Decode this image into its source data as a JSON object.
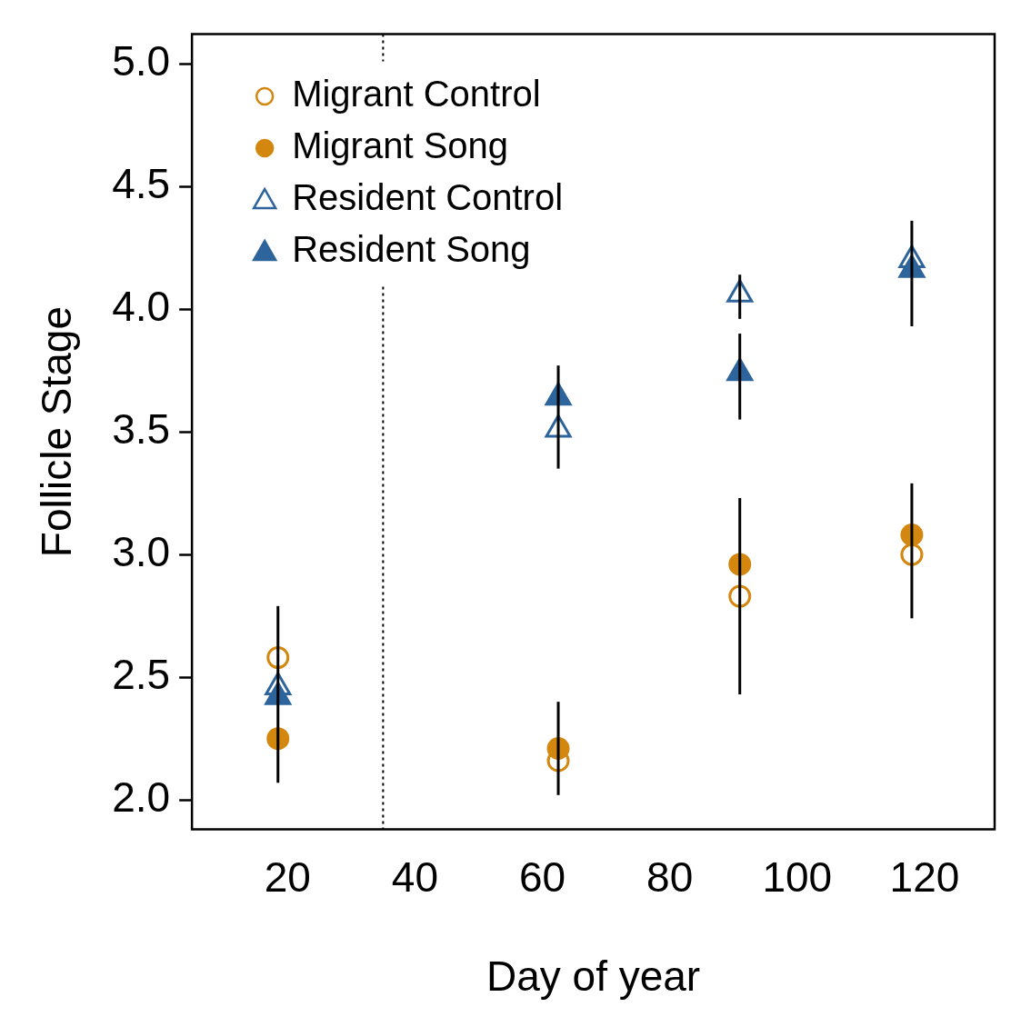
{
  "chart_data": {
    "type": "scatter",
    "xlabel": "Day of year",
    "ylabel": "Follicle Stage",
    "xlim": [
      5,
      131
    ],
    "ylim": [
      1.88,
      5.12
    ],
    "xticks": [
      20,
      40,
      60,
      80,
      100,
      120
    ],
    "yticks": [
      {
        "value": 2,
        "label": "2.0"
      },
      {
        "value": 2.5,
        "label": "2.5"
      },
      {
        "value": 3,
        "label": "3.0"
      },
      {
        "value": 3.5,
        "label": "3.5"
      },
      {
        "value": 4,
        "label": "4.0"
      },
      {
        "value": 4.5,
        "label": "4.5"
      },
      {
        "value": 5,
        "label": "5.0"
      }
    ],
    "x": [
      18.5,
      62.5,
      91,
      118
    ],
    "series": [
      {
        "name": "Migrant Control",
        "color": "#d4870f",
        "marker": "circle-open",
        "values": [
          2.58,
          2.16,
          2.83,
          3.0
        ],
        "errors": [
          [
            2.07,
            2.79
          ],
          null,
          [
            2.43,
            3.23
          ],
          null
        ]
      },
      {
        "name": "Migrant Song",
        "color": "#d4870f",
        "marker": "circle",
        "values": [
          2.25,
          2.21,
          2.96,
          3.08
        ],
        "errors": [
          null,
          [
            2.02,
            2.4
          ],
          null,
          [
            2.74,
            3.29
          ]
        ]
      },
      {
        "name": "Resident Control",
        "color": "#2e649c",
        "marker": "triangle-open",
        "values": [
          2.46,
          3.51,
          4.06,
          4.2
        ],
        "errors": [
          null,
          null,
          [
            3.96,
            4.14
          ],
          null
        ]
      },
      {
        "name": "Resident Song",
        "color": "#2e649c",
        "marker": "triangle",
        "values": [
          2.42,
          3.64,
          3.74,
          4.16
        ],
        "errors": [
          null,
          [
            3.35,
            3.77
          ],
          [
            3.55,
            3.9
          ],
          [
            3.93,
            4.36
          ]
        ]
      }
    ],
    "ref_lines": [
      {
        "axis": "x",
        "value": 35,
        "line_style": "dotted",
        "color": "#000000"
      }
    ],
    "grid": false,
    "legend": "top left"
  }
}
